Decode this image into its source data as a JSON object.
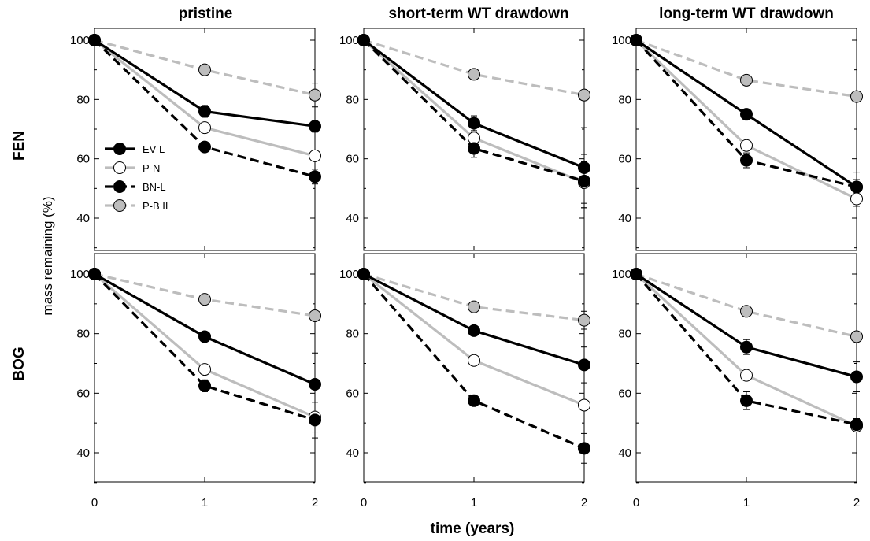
{
  "figure": {
    "col_titles": [
      "pristine",
      "short-term WT drawdown",
      "long-term WT drawdown"
    ],
    "row_labels": [
      "FEN",
      "BOG"
    ],
    "xlabel": "time (years)",
    "ylabel": "mass remaining (%)"
  },
  "legend": [
    {
      "name": "EV-L",
      "color": "#000000",
      "dash": "solid",
      "marker": "filled-black"
    },
    {
      "name": "P-N",
      "color": "#bdbdbd",
      "dash": "solid",
      "marker": "open-white"
    },
    {
      "name": "BN-L",
      "color": "#000000",
      "dash": "dashed",
      "marker": "filled-black"
    },
    {
      "name": "P-B II",
      "color": "#bdbdbd",
      "dash": "dashed",
      "marker": "filled-grey"
    }
  ],
  "chart_data": {
    "type": "line",
    "x_ticks": [
      0,
      1,
      2
    ],
    "y_ticks": [
      40,
      60,
      80,
      100
    ],
    "xlim": [
      0,
      2
    ],
    "ylim": [
      30,
      100
    ],
    "legend_position": "lower-left of FEN pristine panel",
    "panels": [
      {
        "row": "FEN",
        "col": "pristine",
        "series": [
          {
            "name": "EV-L",
            "x": [
              0,
              1,
              2
            ],
            "y": [
              100,
              76,
              71
            ],
            "err": [
              0,
              2,
              2
            ]
          },
          {
            "name": "P-N",
            "x": [
              0,
              1,
              2
            ],
            "y": [
              100,
              70.5,
              61
            ],
            "err": [
              0,
              1.5,
              0
            ]
          },
          {
            "name": "BN-L",
            "x": [
              0,
              1,
              2
            ],
            "y": [
              100,
              64,
              54
            ],
            "err": [
              0,
              0,
              2.5
            ]
          },
          {
            "name": "P-B II",
            "x": [
              0,
              1,
              2
            ],
            "y": [
              100,
              90,
              81.5
            ],
            "err": [
              0,
              0,
              4
            ]
          }
        ]
      },
      {
        "row": "FEN",
        "col": "short-term WT drawdown",
        "series": [
          {
            "name": "EV-L",
            "x": [
              0,
              1,
              2
            ],
            "y": [
              100,
              72,
              57
            ],
            "err": [
              0,
              2.5,
              13.5
            ]
          },
          {
            "name": "P-N",
            "x": [
              0,
              1,
              2
            ],
            "y": [
              100,
              67,
              52
            ],
            "err": [
              0,
              2,
              7
            ]
          },
          {
            "name": "BN-L",
            "x": [
              0,
              1,
              2
            ],
            "y": [
              100,
              63.5,
              52.5
            ],
            "err": [
              0,
              3,
              9
            ]
          },
          {
            "name": "P-B II",
            "x": [
              0,
              1,
              2
            ],
            "y": [
              100,
              88.5,
              81.5
            ],
            "err": [
              0,
              0,
              0
            ]
          }
        ]
      },
      {
        "row": "FEN",
        "col": "long-term WT drawdown",
        "series": [
          {
            "name": "EV-L",
            "x": [
              0,
              1,
              2
            ],
            "y": [
              100,
              75,
              50.5
            ],
            "err": [
              0,
              0,
              2.5
            ]
          },
          {
            "name": "P-N",
            "x": [
              0,
              1,
              2
            ],
            "y": [
              100,
              64.5,
              46.5
            ],
            "err": [
              0,
              0,
              2.5
            ]
          },
          {
            "name": "BN-L",
            "x": [
              0,
              1,
              2
            ],
            "y": [
              100,
              59.5,
              50.5
            ],
            "err": [
              0,
              2.5,
              5
            ]
          },
          {
            "name": "P-B II",
            "x": [
              0,
              1,
              2
            ],
            "y": [
              100,
              86.5,
              81
            ],
            "err": [
              0,
              0,
              0
            ]
          }
        ]
      },
      {
        "row": "BOG",
        "col": "pristine",
        "series": [
          {
            "name": "EV-L",
            "x": [
              0,
              1,
              2
            ],
            "y": [
              100,
              79,
              63
            ],
            "err": [
              0,
              0,
              10.5
            ]
          },
          {
            "name": "P-N",
            "x": [
              0,
              1,
              2
            ],
            "y": [
              100,
              68,
              52
            ],
            "err": [
              0,
              0,
              5
            ]
          },
          {
            "name": "BN-L",
            "x": [
              0,
              1,
              2
            ],
            "y": [
              100,
              62.5,
              51
            ],
            "err": [
              0,
              2,
              6
            ]
          },
          {
            "name": "P-B II",
            "x": [
              0,
              1,
              2
            ],
            "y": [
              100,
              91.5,
              86
            ],
            "err": [
              0,
              0,
              0
            ]
          }
        ]
      },
      {
        "row": "BOG",
        "col": "short-term WT drawdown",
        "series": [
          {
            "name": "EV-L",
            "x": [
              0,
              1,
              2
            ],
            "y": [
              100,
              81,
              69.5
            ],
            "err": [
              0,
              0,
              6
            ]
          },
          {
            "name": "P-N",
            "x": [
              0,
              1,
              2
            ],
            "y": [
              100,
              71,
              56
            ],
            "err": [
              0,
              0,
              0
            ]
          },
          {
            "name": "BN-L",
            "x": [
              0,
              1,
              2
            ],
            "y": [
              100,
              57.5,
              41.5
            ],
            "err": [
              0,
              0,
              5
            ]
          },
          {
            "name": "P-B II",
            "x": [
              0,
              1,
              2
            ],
            "y": [
              100,
              89,
              84.5
            ],
            "err": [
              0,
              0,
              3
            ]
          }
        ]
      },
      {
        "row": "BOG",
        "col": "long-term WT drawdown",
        "series": [
          {
            "name": "EV-L",
            "x": [
              0,
              1,
              2
            ],
            "y": [
              100,
              75.5,
              65.5
            ],
            "err": [
              0,
              2.5,
              5
            ]
          },
          {
            "name": "P-N",
            "x": [
              0,
              1,
              2
            ],
            "y": [
              100,
              66,
              49
            ],
            "err": [
              0,
              0,
              0
            ]
          },
          {
            "name": "BN-L",
            "x": [
              0,
              1,
              2
            ],
            "y": [
              100,
              57.5,
              49.5
            ],
            "err": [
              0,
              3,
              2
            ]
          },
          {
            "name": "P-B II",
            "x": [
              0,
              1,
              2
            ],
            "y": [
              100,
              87.5,
              79
            ],
            "err": [
              0,
              0,
              0
            ]
          }
        ]
      }
    ]
  }
}
